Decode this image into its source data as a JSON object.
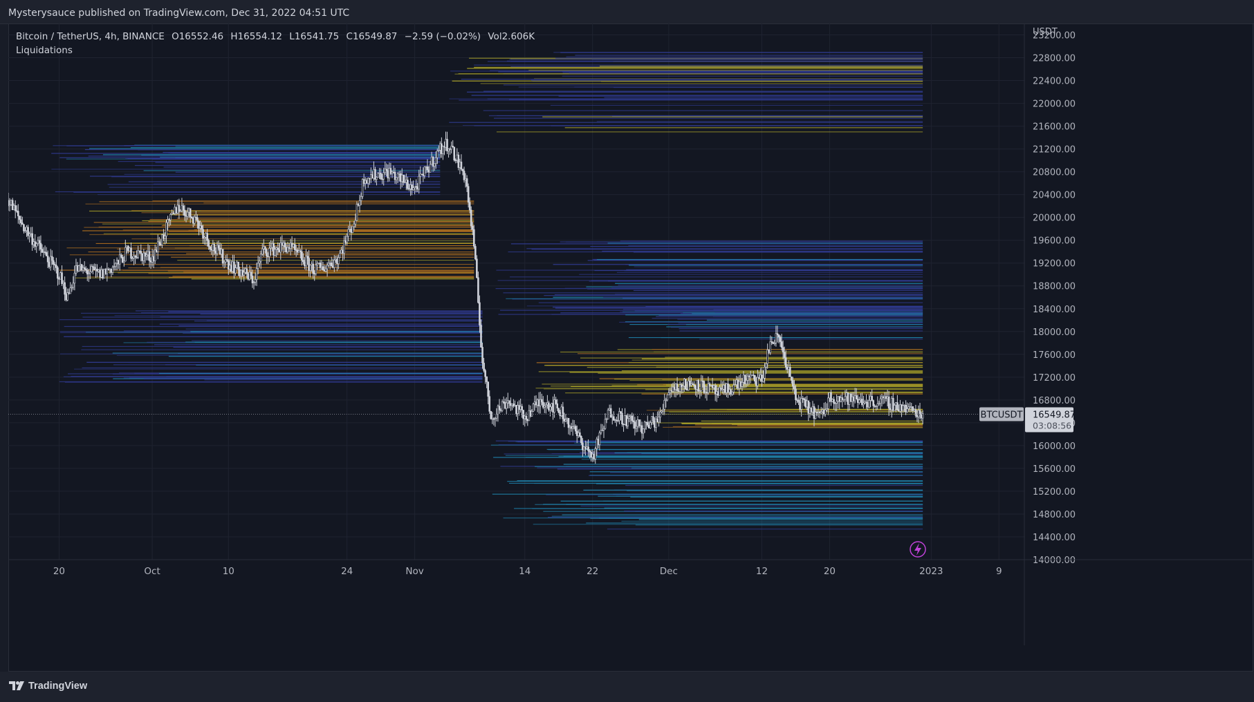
{
  "header": {
    "published": "Mysterysauce published on TradingView.com, Dec 31, 2022 04:51 UTC"
  },
  "legend": {
    "symbol": "Bitcoin / TetherUS, 4h, BINANCE",
    "open": "O16552.46",
    "high": "H16554.12",
    "low": "L16541.75",
    "close": "C16549.87",
    "change": "−2.59 (−0.02%)",
    "volume": "Vol2.606K",
    "indicator": "Liquidations"
  },
  "footer": {
    "brand": "TradingView"
  },
  "colors": {
    "background": "#131722",
    "candle": "#d1d4dc",
    "liq_blue": "#2f3a8f",
    "liq_cyan": "#1f7fa8",
    "liq_yellow": "#a8a028",
    "liq_orange": "#a86a1f",
    "price_label_bg": "#d1d4dc",
    "symbol_label_bg": "#b2b5be"
  },
  "chart_data": {
    "type": "candlestick",
    "symbol": "BTCUSDT",
    "timeframe": "4h",
    "currency": "USDT",
    "last_price": "16549.87",
    "countdown": "03:08:56",
    "symbol_label": "BTCUSDT",
    "ylim": [
      14000,
      23400
    ],
    "y_ticks": [
      "14000.00",
      "14400.00",
      "14800.00",
      "15200.00",
      "15600.00",
      "16000.00",
      "16400.00",
      "16800.00",
      "17200.00",
      "17600.00",
      "18000.00",
      "18400.00",
      "18800.00",
      "19200.00",
      "19600.00",
      "20000.00",
      "20400.00",
      "20800.00",
      "21200.00",
      "21600.00",
      "22000.00",
      "22400.00",
      "22800.00",
      "23200.00"
    ],
    "x_labels": [
      {
        "date": "2022-09-20",
        "label": "20"
      },
      {
        "date": "2022-10-01",
        "label": "Oct"
      },
      {
        "date": "2022-10-10",
        "label": "10"
      },
      {
        "date": "2022-10-24",
        "label": "24"
      },
      {
        "date": "2022-11-01",
        "label": "Nov"
      },
      {
        "date": "2022-11-14",
        "label": "14"
      },
      {
        "date": "2022-11-22",
        "label": "22"
      },
      {
        "date": "2022-12-01",
        "label": "Dec"
      },
      {
        "date": "2022-12-12",
        "label": "12"
      },
      {
        "date": "2022-12-20",
        "label": "20"
      },
      {
        "date": "2023-01-01",
        "label": "2023"
      },
      {
        "date": "2023-01-09",
        "label": "9"
      }
    ],
    "x_range": [
      "2022-09-14",
      "2023-01-12"
    ],
    "price_path": [
      [
        "2022-09-14",
        20300
      ],
      [
        "2022-09-16",
        19800
      ],
      [
        "2022-09-19",
        19200
      ],
      [
        "2022-09-20",
        19000
      ],
      [
        "2022-09-21",
        18600
      ],
      [
        "2022-09-22",
        19100
      ],
      [
        "2022-09-25",
        19000
      ],
      [
        "2022-09-27",
        19200
      ],
      [
        "2022-09-28",
        19400
      ],
      [
        "2022-10-01",
        19300
      ],
      [
        "2022-10-04",
        20200
      ],
      [
        "2022-10-06",
        20000
      ],
      [
        "2022-10-08",
        19500
      ],
      [
        "2022-10-10",
        19200
      ],
      [
        "2022-10-13",
        18900
      ],
      [
        "2022-10-14",
        19400
      ],
      [
        "2022-10-17",
        19500
      ],
      [
        "2022-10-20",
        19100
      ],
      [
        "2022-10-21",
        19100
      ],
      [
        "2022-10-23",
        19300
      ],
      [
        "2022-10-25",
        20000
      ],
      [
        "2022-10-26",
        20700
      ],
      [
        "2022-10-29",
        20800
      ],
      [
        "2022-11-01",
        20500
      ],
      [
        "2022-11-04",
        21200
      ],
      [
        "2022-11-05",
        21300
      ],
      [
        "2022-11-07",
        20700
      ],
      [
        "2022-11-08",
        19500
      ],
      [
        "2022-11-09",
        17500
      ],
      [
        "2022-11-10",
        16500
      ],
      [
        "2022-11-12",
        16800
      ],
      [
        "2022-11-14",
        16500
      ],
      [
        "2022-11-16",
        16800
      ],
      [
        "2022-11-18",
        16650
      ],
      [
        "2022-11-21",
        16000
      ],
      [
        "2022-11-22",
        15800
      ],
      [
        "2022-11-24",
        16600
      ],
      [
        "2022-11-28",
        16300
      ],
      [
        "2022-11-30",
        16500
      ],
      [
        "2022-12-01",
        17000
      ],
      [
        "2022-12-04",
        17100
      ],
      [
        "2022-12-07",
        16900
      ],
      [
        "2022-12-10",
        17150
      ],
      [
        "2022-12-12",
        17150
      ],
      [
        "2022-12-13",
        17800
      ],
      [
        "2022-12-14",
        17900
      ],
      [
        "2022-12-15",
        17400
      ],
      [
        "2022-12-16",
        16800
      ],
      [
        "2022-12-17",
        16700
      ],
      [
        "2022-12-19",
        16500
      ],
      [
        "2022-12-20",
        16850
      ],
      [
        "2022-12-23",
        16800
      ],
      [
        "2022-12-27",
        16750
      ],
      [
        "2022-12-30",
        16600
      ],
      [
        "2022-12-31",
        16550
      ]
    ],
    "liquidation_zones": [
      {
        "from": "2022-11-05",
        "to": "2022-12-31",
        "low": 21500,
        "high": 22900,
        "dominant": "blue",
        "accent": "yellow"
      },
      {
        "from": "2022-09-18",
        "to": "2022-11-04",
        "low": 20400,
        "high": 21300,
        "dominant": "blue",
        "accent": "cyan"
      },
      {
        "from": "2022-09-20",
        "to": "2022-11-08",
        "low": 18900,
        "high": 20300,
        "dominant": "orange",
        "accent": "yellow"
      },
      {
        "from": "2022-09-20",
        "to": "2022-11-09",
        "low": 17100,
        "high": 18400,
        "dominant": "blue",
        "accent": "cyan"
      },
      {
        "from": "2022-11-10",
        "to": "2022-12-31",
        "low": 18300,
        "high": 19600,
        "dominant": "blue",
        "accent": "cyan"
      },
      {
        "from": "2022-11-25",
        "to": "2022-12-31",
        "low": 17800,
        "high": 18450,
        "dominant": "blue",
        "accent": "cyan"
      },
      {
        "from": "2022-11-15",
        "to": "2022-12-31",
        "low": 16900,
        "high": 17700,
        "dominant": "yellow",
        "accent": "orange"
      },
      {
        "from": "2022-11-28",
        "to": "2022-12-31",
        "low": 16300,
        "high": 16700,
        "dominant": "yellow",
        "accent": "orange"
      },
      {
        "from": "2022-11-10",
        "to": "2022-12-31",
        "low": 14500,
        "high": 16100,
        "dominant": "cyan",
        "accent": "blue"
      }
    ]
  }
}
